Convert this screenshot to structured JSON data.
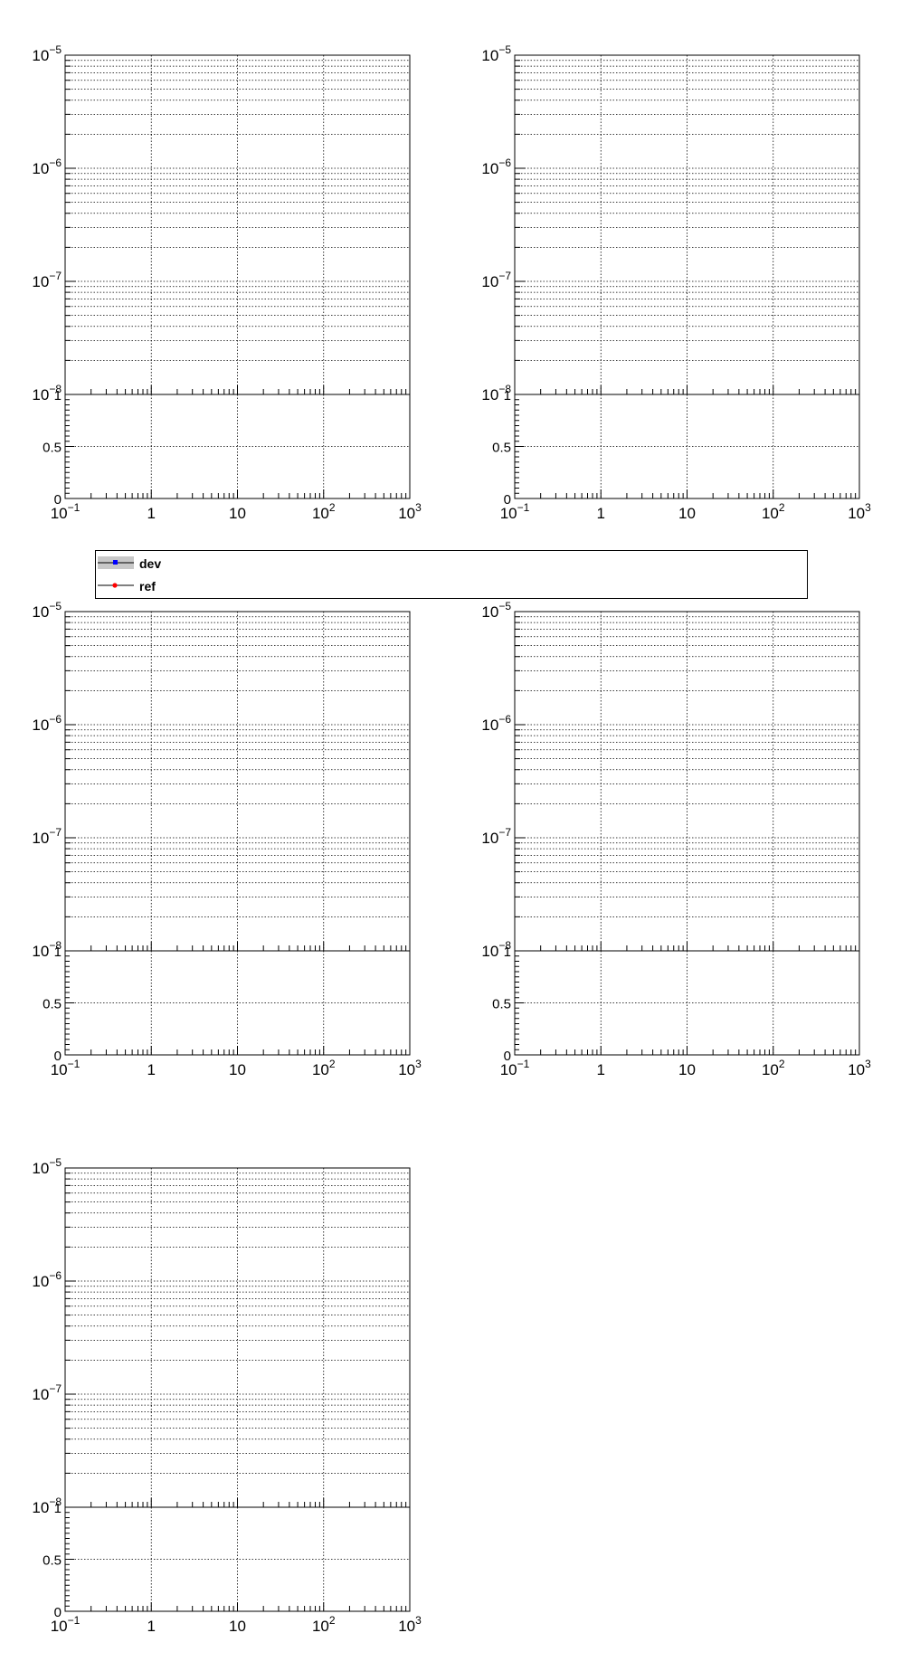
{
  "chart_data": [
    {
      "type": "line",
      "title": "",
      "xscale": "log",
      "xlim": [
        0.1,
        1000
      ],
      "yscale": "log",
      "ylim": [
        1e-08,
        1e-05
      ],
      "ratio_ylim": [
        0,
        1
      ],
      "ratio_ticks": [
        "0",
        "0.5",
        "1"
      ],
      "grid": true,
      "series": []
    },
    {
      "type": "line",
      "title": "",
      "xscale": "log",
      "xlim": [
        0.1,
        1000
      ],
      "yscale": "log",
      "ylim": [
        1e-08,
        1e-05
      ],
      "ratio_ylim": [
        0,
        1
      ],
      "ratio_ticks": [
        "0",
        "0.5",
        "1"
      ],
      "grid": true,
      "series": []
    },
    {
      "type": "line",
      "title": "",
      "xscale": "log",
      "xlim": [
        0.1,
        1000
      ],
      "yscale": "log",
      "ylim": [
        1e-08,
        1e-05
      ],
      "ratio_ylim": [
        0,
        1
      ],
      "ratio_ticks": [
        "0",
        "0.5",
        "1"
      ],
      "grid": true,
      "series": []
    },
    {
      "type": "line",
      "title": "",
      "xscale": "log",
      "xlim": [
        0.1,
        1000
      ],
      "yscale": "log",
      "ylim": [
        1e-08,
        1e-05
      ],
      "ratio_ylim": [
        0,
        1
      ],
      "ratio_ticks": [
        "0",
        "0.5",
        "1"
      ],
      "grid": true,
      "series": []
    },
    {
      "type": "line",
      "title": "",
      "xscale": "log",
      "xlim": [
        0.1,
        1000
      ],
      "yscale": "log",
      "ylim": [
        1e-08,
        1e-05
      ],
      "ratio_ylim": [
        0,
        1
      ],
      "ratio_ticks": [
        "0",
        "0.5",
        "1"
      ],
      "grid": true,
      "series": []
    }
  ],
  "x_tick_labels": [
    {
      "base": "10",
      "exp": "−1"
    },
    {
      "base": "1",
      "exp": ""
    },
    {
      "base": "10",
      "exp": ""
    },
    {
      "base": "10",
      "exp": "2"
    },
    {
      "base": "10",
      "exp": "3"
    }
  ],
  "y_tick_labels": [
    {
      "base": "10",
      "exp": "−5"
    },
    {
      "base": "10",
      "exp": "−6"
    },
    {
      "base": "10",
      "exp": "−7"
    },
    {
      "base": "10",
      "exp": "−8"
    }
  ],
  "legend": {
    "entries": [
      {
        "label": "dev",
        "color": "#0000ff",
        "band_color": "#c8c8c8",
        "marker": "square"
      },
      {
        "label": "ref",
        "color": "#ff0000",
        "marker": "circle"
      }
    ]
  }
}
